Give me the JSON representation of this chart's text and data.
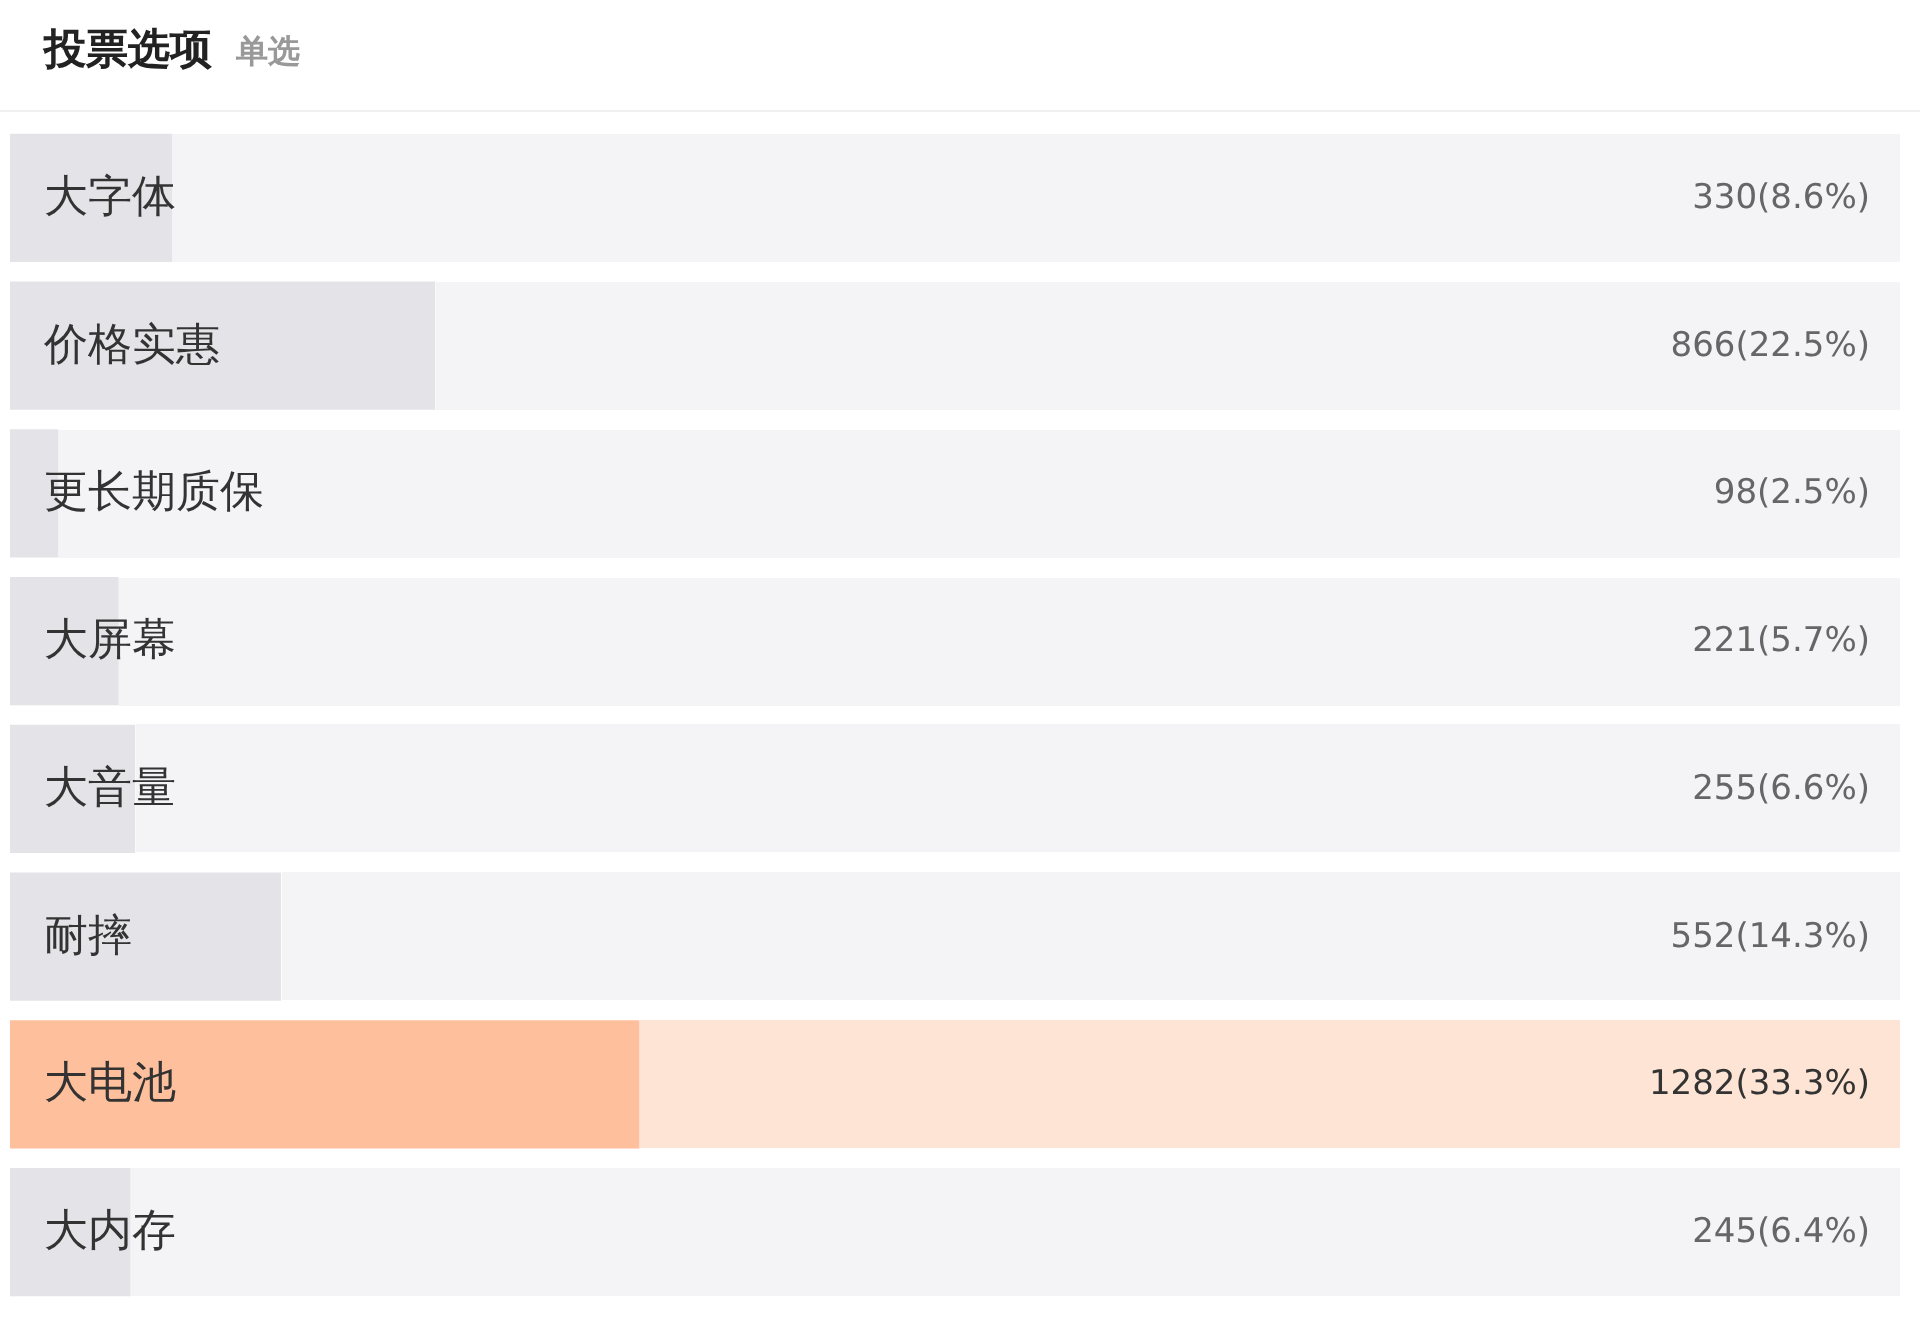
{
  "chart_data": {
    "type": "bar",
    "orientation": "horizontal",
    "title": "投票选项",
    "subtitle": "单选",
    "categories": [
      "大字体",
      "价格实惠",
      "更长期质保",
      "大屏幕",
      "大音量",
      "耐摔",
      "大电池",
      "大内存"
    ],
    "values": [
      330,
      866,
      98,
      221,
      255,
      552,
      1282,
      245
    ],
    "value_labels": [
      "330(8.6%)",
      "866(22.5%)",
      "98(2.5%)",
      "221(5.7%)",
      "255(6.6%)",
      "552(14.3%)",
      "1282(33.3%)",
      "245(6.4%)"
    ],
    "colors": [
      "#e4e3e8",
      "#e4e3e8",
      "#e4e3e8",
      "#e4e3e8",
      "#e4e3e8",
      "#e4e3e8",
      "#fdbf9c",
      "#e4e3e8"
    ],
    "tick_labels": "y"
  }
}
